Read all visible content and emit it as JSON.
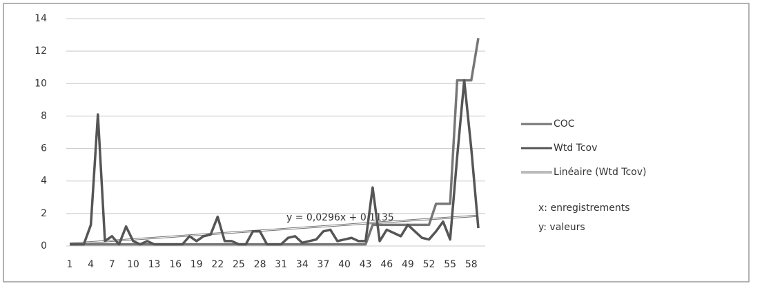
{
  "chart_data": {
    "type": "line",
    "categories": [
      "1",
      null,
      null,
      "4",
      null,
      null,
      "7",
      null,
      null,
      "10",
      null,
      null,
      "13",
      null,
      null,
      "16",
      null,
      null,
      "19",
      null,
      null,
      "22",
      null,
      null,
      "25",
      null,
      null,
      "28",
      null,
      null,
      "31",
      null,
      null,
      "34",
      null,
      null,
      "37",
      null,
      null,
      "40",
      null,
      null,
      "43",
      null,
      null,
      "46",
      null,
      null,
      "49",
      null,
      null,
      "52",
      null,
      null,
      "55",
      null,
      null,
      "58",
      null
    ],
    "series": [
      {
        "name": "COC",
        "color": "#767676",
        "values": [
          0.1,
          0.1,
          0.1,
          0.1,
          0.1,
          0.1,
          0.1,
          0.1,
          0.1,
          0.1,
          0.1,
          0.1,
          0.1,
          0.1,
          0.1,
          0.1,
          0.1,
          0.1,
          0.1,
          0.1,
          0.1,
          0.1,
          0.1,
          0.1,
          0.1,
          0.1,
          0.1,
          0.1,
          0.1,
          0.1,
          0.1,
          0.1,
          0.1,
          0.1,
          0.1,
          0.1,
          0.1,
          0.1,
          0.1,
          0.1,
          0.1,
          0.1,
          0.1,
          1.3,
          1.3,
          1.3,
          1.3,
          1.3,
          1.3,
          1.3,
          1.3,
          1.3,
          2.6,
          2.6,
          2.6,
          10.2,
          10.2,
          10.2,
          12.8
        ]
      },
      {
        "name": "Wtd Tcov",
        "color": "#555555",
        "values": [
          0.1,
          0.1,
          0.1,
          1.3,
          8.1,
          0.3,
          0.6,
          0.1,
          1.2,
          0.3,
          0.1,
          0.3,
          0.1,
          0.1,
          0.1,
          0.1,
          0.1,
          0.6,
          0.3,
          0.6,
          0.7,
          1.8,
          0.3,
          0.3,
          0.1,
          0.1,
          0.9,
          0.9,
          0.1,
          0.1,
          0.1,
          0.5,
          0.6,
          0.2,
          0.3,
          0.4,
          0.9,
          1.0,
          0.3,
          0.4,
          0.5,
          0.3,
          0.3,
          3.6,
          0.3,
          1.0,
          0.8,
          0.6,
          1.3,
          0.9,
          0.5,
          0.4,
          0.9,
          1.5,
          0.4,
          5.5,
          10.2,
          6.0,
          1.1
        ]
      }
    ],
    "trendline": {
      "name": "Linéaire (Wtd Tcov)",
      "color": "#777777",
      "slope": 0.0296,
      "intercept": 0.1135,
      "equation": "y = 0,0296x + 0,1135"
    },
    "annotations": [
      "x: enregistrements",
      "y: valeurs"
    ],
    "ylim": [
      0,
      14
    ],
    "yticks": [
      0,
      2,
      4,
      6,
      8,
      10,
      12,
      14
    ],
    "grid": true
  }
}
